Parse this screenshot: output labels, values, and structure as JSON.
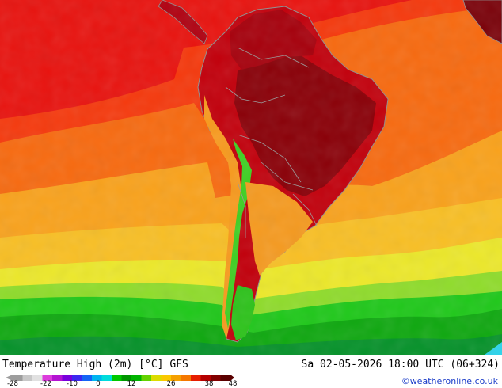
{
  "map": {
    "title": "Temperature High (2m) [°C] GFS",
    "valid_time": "Sa 02-05-2026 18:00 UTC (06+324)",
    "credit": "©weatheronline.co.uk",
    "region": "South America",
    "colors": {
      "ocean_far": "#e8130f",
      "land_hot": "#a6000c",
      "land_hottest": "#8a0008",
      "orange": "#f76a10",
      "light_orange": "#f9a21c",
      "yellow_orange": "#f8bf25",
      "yellow": "#ece82a",
      "light_green": "#8fdc2b",
      "green": "#1fc81a",
      "dark_green": "#0fa810",
      "cold_green": "#06922a",
      "cyan": "#28d4ec",
      "border": "#9a9a9a"
    }
  },
  "legend": {
    "labels": [
      "-28",
      "-22",
      "-10",
      "0",
      "12",
      "26",
      "38",
      "48"
    ],
    "colors": [
      "#9d9d9d",
      "#c8c8c8",
      "#e1e1e1",
      "#dc3cdc",
      "#b414d2",
      "#7800dc",
      "#3c28f0",
      "#1464f5",
      "#00b4f0",
      "#00dcdc",
      "#00c800",
      "#009600",
      "#00b400",
      "#64d200",
      "#dcdc00",
      "#fac800",
      "#f5a000",
      "#f57800",
      "#e61e00",
      "#b40000",
      "#820000",
      "#5a0000"
    ]
  }
}
